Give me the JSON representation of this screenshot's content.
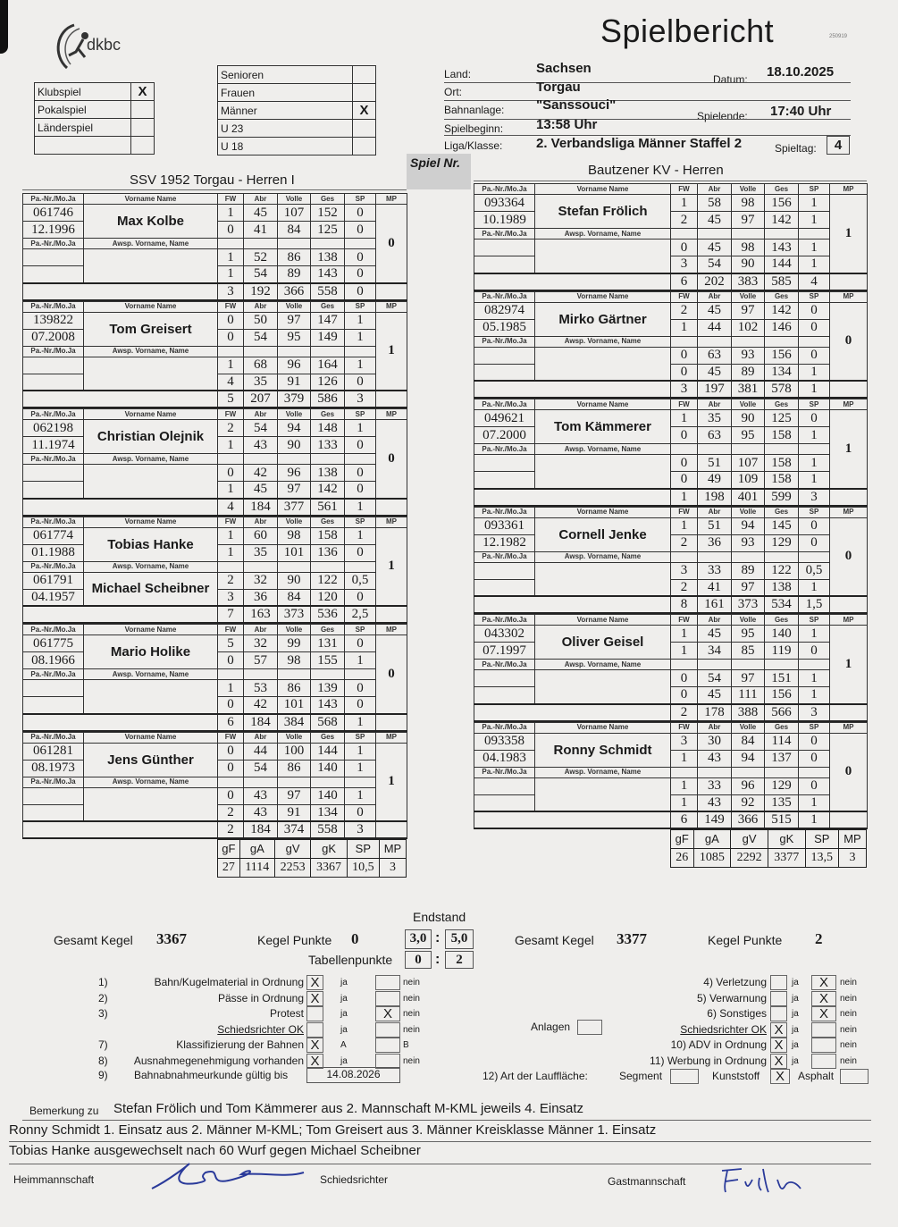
{
  "header": {
    "title": "Spielbericht",
    "form_code": "250919",
    "logo_text": "dkbc"
  },
  "match_type": [
    {
      "label": "Klubspiel",
      "checked": "X"
    },
    {
      "label": "Pokalspiel",
      "checked": ""
    },
    {
      "label": "Länderspiel",
      "checked": ""
    },
    {
      "label": "",
      "checked": ""
    }
  ],
  "category": [
    {
      "label": "Senioren",
      "checked": ""
    },
    {
      "label": "Frauen",
      "checked": ""
    },
    {
      "label": "Männer",
      "checked": "X"
    },
    {
      "label": "U 23",
      "checked": ""
    },
    {
      "label": "U 18",
      "checked": ""
    }
  ],
  "info": {
    "land_label": "Land:",
    "land": "Sachsen",
    "ort_label": "Ort:",
    "ort": "Torgau",
    "datum_label": "Datum:",
    "datum": "18.10.2025",
    "bahnanlage_label": "Bahnanlage:",
    "bahnanlage": "\"Sanssouci\"",
    "spielbeginn_label": "Spielbeginn:",
    "spielbeginn": "13:58 Uhr",
    "spielende_label": "Spielende:",
    "spielende": "17:40 Uhr",
    "liga_label": "Liga/Klasse:",
    "liga": "2. Verbandsliga Männer Staffel 2",
    "spieltag_label": "Spieltag:",
    "spieltag": "4",
    "spielnr_label": "Spiel Nr."
  },
  "columns": {
    "pass": "Pa.-Nr./Mo.Ja",
    "name": "Vorname  Name",
    "sub": "Awsp. Vorname, Name",
    "fw": "FW",
    "abr": "Abr",
    "volle": "Volle",
    "ges": "Ges",
    "sp": "SP",
    "mp": "MP"
  },
  "teams": [
    {
      "name": "SSV 1952 Torgau - Herren I",
      "players": [
        {
          "id": "061746",
          "date": "12.1996",
          "name": "Max Kolbe",
          "sub_id": "",
          "sub_date": "",
          "sub_name": "",
          "lanes": [
            [
              "1",
              "45",
              "107",
              "152",
              "0"
            ],
            [
              "0",
              "41",
              "84",
              "125",
              "0"
            ],
            [
              "1",
              "52",
              "86",
              "138",
              "0"
            ],
            [
              "1",
              "54",
              "89",
              "143",
              "0"
            ]
          ],
          "total": [
            "3",
            "192",
            "366",
            "558",
            "0"
          ],
          "mp": "0"
        },
        {
          "id": "139822",
          "date": "07.2008",
          "name": "Tom Greisert",
          "sub_id": "",
          "sub_date": "",
          "sub_name": "",
          "lanes": [
            [
              "0",
              "50",
              "97",
              "147",
              "1"
            ],
            [
              "0",
              "54",
              "95",
              "149",
              "1"
            ],
            [
              "1",
              "68",
              "96",
              "164",
              "1"
            ],
            [
              "4",
              "35",
              "91",
              "126",
              "0"
            ]
          ],
          "total": [
            "5",
            "207",
            "379",
            "586",
            "3"
          ],
          "mp": "1"
        },
        {
          "id": "062198",
          "date": "11.1974",
          "name": "Christian Olejnik",
          "sub_id": "",
          "sub_date": "",
          "sub_name": "",
          "lanes": [
            [
              "2",
              "54",
              "94",
              "148",
              "1"
            ],
            [
              "1",
              "43",
              "90",
              "133",
              "0"
            ],
            [
              "0",
              "42",
              "96",
              "138",
              "0"
            ],
            [
              "1",
              "45",
              "97",
              "142",
              "0"
            ]
          ],
          "total": [
            "4",
            "184",
            "377",
            "561",
            "1"
          ],
          "mp": "0"
        },
        {
          "id": "061774",
          "date": "01.1988",
          "name": "Tobias Hanke",
          "sub_id": "061791",
          "sub_date": "04.1957",
          "sub_name": "Michael Scheibner",
          "lanes": [
            [
              "1",
              "60",
              "98",
              "158",
              "1"
            ],
            [
              "1",
              "35",
              "101",
              "136",
              "0"
            ],
            [
              "2",
              "32",
              "90",
              "122",
              "0,5"
            ],
            [
              "3",
              "36",
              "84",
              "120",
              "0"
            ]
          ],
          "total": [
            "7",
            "163",
            "373",
            "536",
            "2,5"
          ],
          "mp": "1"
        },
        {
          "id": "061775",
          "date": "08.1966",
          "name": "Mario Holike",
          "sub_id": "",
          "sub_date": "",
          "sub_name": "",
          "lanes": [
            [
              "5",
              "32",
              "99",
              "131",
              "0"
            ],
            [
              "0",
              "57",
              "98",
              "155",
              "1"
            ],
            [
              "1",
              "53",
              "86",
              "139",
              "0"
            ],
            [
              "0",
              "42",
              "101",
              "143",
              "0"
            ]
          ],
          "total": [
            "6",
            "184",
            "384",
            "568",
            "1"
          ],
          "mp": "0"
        },
        {
          "id": "061281",
          "date": "08.1973",
          "name": "Jens Günther",
          "sub_id": "",
          "sub_date": "",
          "sub_name": "",
          "lanes": [
            [
              "0",
              "44",
              "100",
              "144",
              "1"
            ],
            [
              "0",
              "54",
              "86",
              "140",
              "1"
            ],
            [
              "0",
              "43",
              "97",
              "140",
              "1"
            ],
            [
              "2",
              "43",
              "91",
              "134",
              "0"
            ]
          ],
          "total": [
            "2",
            "184",
            "374",
            "558",
            "3"
          ],
          "mp": "1"
        }
      ],
      "summary_headers": [
        "gF",
        "gA",
        "gV",
        "gK",
        "SP",
        "MP"
      ],
      "summary": [
        "27",
        "1114",
        "2253",
        "3367",
        "10,5",
        "3"
      ],
      "gesamt_kegel_label": "Gesamt Kegel",
      "gesamt_kegel": "3367",
      "kegel_punkte_label": "Kegel Punkte",
      "kegel_punkte": "0"
    },
    {
      "name": "Bautzener KV - Herren",
      "players": [
        {
          "id": "093364",
          "date": "10.1989",
          "name": "Stefan Frölich",
          "sub_id": "",
          "sub_date": "",
          "sub_name": "",
          "lanes": [
            [
              "1",
              "58",
              "98",
              "156",
              "1"
            ],
            [
              "2",
              "45",
              "97",
              "142",
              "1"
            ],
            [
              "0",
              "45",
              "98",
              "143",
              "1"
            ],
            [
              "3",
              "54",
              "90",
              "144",
              "1"
            ]
          ],
          "total": [
            "6",
            "202",
            "383",
            "585",
            "4"
          ],
          "mp": "1"
        },
        {
          "id": "082974",
          "date": "05.1985",
          "name": "Mirko Gärtner",
          "sub_id": "",
          "sub_date": "",
          "sub_name": "",
          "lanes": [
            [
              "2",
              "45",
              "97",
              "142",
              "0"
            ],
            [
              "1",
              "44",
              "102",
              "146",
              "0"
            ],
            [
              "0",
              "63",
              "93",
              "156",
              "0"
            ],
            [
              "0",
              "45",
              "89",
              "134",
              "1"
            ]
          ],
          "total": [
            "3",
            "197",
            "381",
            "578",
            "1"
          ],
          "mp": "0"
        },
        {
          "id": "049621",
          "date": "07.2000",
          "name": "Tom Kämmerer",
          "sub_id": "",
          "sub_date": "",
          "sub_name": "",
          "lanes": [
            [
              "1",
              "35",
              "90",
              "125",
              "0"
            ],
            [
              "0",
              "63",
              "95",
              "158",
              "1"
            ],
            [
              "0",
              "51",
              "107",
              "158",
              "1"
            ],
            [
              "0",
              "49",
              "109",
              "158",
              "1"
            ]
          ],
          "total": [
            "1",
            "198",
            "401",
            "599",
            "3"
          ],
          "mp": "1"
        },
        {
          "id": "093361",
          "date": "12.1982",
          "name": "Cornell Jenke",
          "sub_id": "",
          "sub_date": "",
          "sub_name": "",
          "lanes": [
            [
              "1",
              "51",
              "94",
              "145",
              "0"
            ],
            [
              "2",
              "36",
              "93",
              "129",
              "0"
            ],
            [
              "3",
              "33",
              "89",
              "122",
              "0,5"
            ],
            [
              "2",
              "41",
              "97",
              "138",
              "1"
            ]
          ],
          "total": [
            "8",
            "161",
            "373",
            "534",
            "1,5"
          ],
          "mp": "0"
        },
        {
          "id": "043302",
          "date": "07.1997",
          "name": "Oliver Geisel",
          "sub_id": "",
          "sub_date": "",
          "sub_name": "",
          "lanes": [
            [
              "1",
              "45",
              "95",
              "140",
              "1"
            ],
            [
              "1",
              "34",
              "85",
              "119",
              "0"
            ],
            [
              "0",
              "54",
              "97",
              "151",
              "1"
            ],
            [
              "0",
              "45",
              "111",
              "156",
              "1"
            ]
          ],
          "total": [
            "2",
            "178",
            "388",
            "566",
            "3"
          ],
          "mp": "1"
        },
        {
          "id": "093358",
          "date": "04.1983",
          "name": "Ronny Schmidt",
          "sub_id": "",
          "sub_date": "",
          "sub_name": "",
          "lanes": [
            [
              "3",
              "30",
              "84",
              "114",
              "0"
            ],
            [
              "1",
              "43",
              "94",
              "137",
              "0"
            ],
            [
              "1",
              "33",
              "96",
              "129",
              "0"
            ],
            [
              "1",
              "43",
              "92",
              "135",
              "1"
            ]
          ],
          "total": [
            "6",
            "149",
            "366",
            "515",
            "1"
          ],
          "mp": "0"
        }
      ],
      "summary_headers": [
        "gF",
        "gA",
        "gV",
        "gK",
        "SP",
        "MP"
      ],
      "summary": [
        "26",
        "1085",
        "2292",
        "3377",
        "13,5",
        "3"
      ],
      "gesamt_kegel_label": "Gesamt Kegel",
      "gesamt_kegel": "3377",
      "kegel_punkte_label": "Kegel Punkte",
      "kegel_punkte": "2"
    }
  ],
  "result": {
    "endstand_label": "Endstand",
    "home": "3,0",
    "away": "5,0",
    "sep": ":",
    "tabellen_label": "Tabellenpunkte",
    "tab_home": "0",
    "tab_away": "2"
  },
  "checklist_left": [
    {
      "num": "1)",
      "label": "Bahn/Kugelmaterial in Ordnung",
      "a": "X",
      "a_label": "ja",
      "b": "",
      "b_label": "nein"
    },
    {
      "num": "2)",
      "label": "Pässe in Ordnung",
      "a": "X",
      "a_label": "ja",
      "b": "",
      "b_label": "nein"
    },
    {
      "num": "3)",
      "label": "Protest",
      "a": "",
      "a_label": "ja",
      "b": "X",
      "b_label": "nein"
    },
    {
      "num": "",
      "label": "Schiedsrichter OK",
      "a": "",
      "a_label": "ja",
      "b": "",
      "b_label": "nein"
    },
    {
      "num": "7)",
      "label": "Klassifizierung der Bahnen",
      "a": "X",
      "a_label": "A",
      "b": "",
      "b_label": "B"
    },
    {
      "num": "8)",
      "label": "Ausnahmegenehmigung vorhanden",
      "a": "X",
      "a_label": "ja",
      "b": "",
      "b_label": "nein"
    }
  ],
  "bahnabnahme": {
    "num": "9)",
    "label": "Bahnabnahmeurkunde gültig bis",
    "value": "14.08.2026"
  },
  "anlagen": {
    "label": "Anlagen",
    "value": ""
  },
  "checklist_right": [
    {
      "label": "4)  Verletzung",
      "a": "",
      "a_label": "ja",
      "b": "X",
      "b_label": "nein"
    },
    {
      "label": "5)  Verwarnung",
      "a": "",
      "a_label": "ja",
      "b": "X",
      "b_label": "nein"
    },
    {
      "label": "6)  Sonstiges",
      "a": "",
      "a_label": "ja",
      "b": "X",
      "b_label": "nein"
    },
    {
      "label": "Schiedsrichter OK",
      "a": "X",
      "a_label": "ja",
      "b": "",
      "b_label": "nein"
    },
    {
      "label": "10) ADV in Ordnung",
      "a": "X",
      "a_label": "ja",
      "b": "",
      "b_label": "nein"
    },
    {
      "label": "11) Werbung in Ordnung",
      "a": "X",
      "a_label": "ja",
      "b": "",
      "b_label": "nein"
    }
  ],
  "laufflaeche": {
    "label": "12) Art der Lauffläche:",
    "options": [
      {
        "label": "Segment",
        "checked": ""
      },
      {
        "label": "Kunststoff",
        "checked": "X"
      },
      {
        "label": "Asphalt",
        "checked": ""
      }
    ]
  },
  "remarks": {
    "label": "Bemerkung zu",
    "lines": [
      "Stefan Frölich und Tom Kämmerer aus 2. Mannschaft M-KML jeweils 4. Einsatz",
      "Ronny Schmidt 1. Einsatz aus 2. Männer M-KML; Tom Greisert aus 3. Männer Kreisklasse Männer 1. Einsatz",
      "Tobias Hanke ausgewechselt nach 60 Wurf gegen Michael Scheibner"
    ]
  },
  "signatures": {
    "home_label": "Heimmannschaft",
    "referee_label": "Schiedsrichter",
    "guest_label": "Gastmannschaft",
    "guest_signature": "Frölich"
  }
}
